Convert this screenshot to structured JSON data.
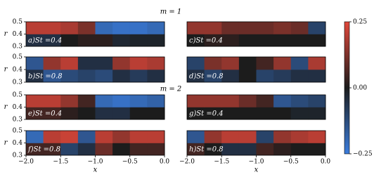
{
  "section_titles": [
    "m = 1",
    "m = 2"
  ],
  "colorbar": {
    "lim": [
      -0.25,
      0.25
    ],
    "colors": [
      "#3b7ddd",
      "#1c1c1c",
      "#e0473a"
    ],
    "ticks": [
      0.25,
      {
        "value": 0,
        "label": "0.00"
      },
      {
        "value": -0.25,
        "label": "−0.25"
      }
    ]
  },
  "chart_data": [
    {
      "type": "heatmap",
      "label": "a)St =0.4",
      "xlim": [
        -2,
        0
      ],
      "ylim": [
        0.3,
        0.5
      ],
      "xbins": [
        -2,
        -1.75,
        -1.5,
        -1.25,
        -1,
        -0.75,
        -0.5,
        -0.25,
        0
      ],
      "ybins": [
        0.3,
        0.4,
        0.5
      ],
      "z": [
        [
          -0.05,
          -0.05,
          0,
          0.02,
          0.02,
          -0.03,
          -0.02,
          -0.02
        ],
        [
          0.2,
          0.2,
          0.18,
          0.12,
          -0.2,
          -0.22,
          -0.22,
          -0.2
        ]
      ],
      "yticks": [
        0.5,
        0.4,
        0.3
      ],
      "ylabel": "r"
    },
    {
      "type": "heatmap",
      "label": "b)St =0.8",
      "xlim": [
        -2,
        0
      ],
      "ylim": [
        0.3,
        0.5
      ],
      "xbins": [
        -2,
        -1.75,
        -1.5,
        -1.25,
        -1,
        -0.75,
        -0.5,
        -0.25,
        0
      ],
      "ybins": [
        0.3,
        0.4,
        0.5
      ],
      "z": [
        [
          -0.05,
          -0.15,
          -0.12,
          -0.1,
          -0.12,
          -0.05,
          -0.08,
          -0.05
        ],
        [
          -0.15,
          0.15,
          0.2,
          -0.05,
          -0.05,
          0.15,
          0.2,
          0.18
        ]
      ],
      "yticks": [
        0.5,
        0.4,
        0.3
      ],
      "ylabel": "r"
    },
    {
      "type": "heatmap",
      "label": "c)St =0.4",
      "xlim": [
        -2,
        0
      ],
      "ylim": [
        0.3,
        0.5
      ],
      "xbins": [
        -2,
        -1.75,
        -1.5,
        -1.25,
        -1,
        -0.75,
        -0.5,
        -0.25,
        0
      ],
      "ybins": [
        0.3,
        0.4,
        0.5
      ],
      "z": [
        [
          0,
          0.02,
          0.02,
          0,
          0,
          0,
          0,
          0
        ],
        [
          0.15,
          0.15,
          0.1,
          0.1,
          0.1,
          0.12,
          0.1,
          -0.1
        ]
      ]
    },
    {
      "type": "heatmap",
      "label": "d)St =0.8",
      "xlim": [
        -2,
        0
      ],
      "ylim": [
        0.3,
        0.5
      ],
      "xbins": [
        -2,
        -1.75,
        -1.5,
        -1.25,
        -1,
        -0.75,
        -0.5,
        -0.25,
        0
      ],
      "ybins": [
        0.3,
        0.4,
        0.5
      ],
      "z": [
        [
          -0.05,
          -0.1,
          -0.05,
          0,
          -0.1,
          -0.08,
          -0.05,
          -0.05
        ],
        [
          -0.1,
          0.12,
          0.15,
          0,
          0.05,
          0.15,
          -0.12,
          0.18
        ]
      ]
    },
    {
      "type": "heatmap",
      "label": "e)St =0.4",
      "xlim": [
        -2,
        0
      ],
      "ylim": [
        0.3,
        0.5
      ],
      "xbins": [
        -2,
        -1.75,
        -1.5,
        -1.25,
        -1,
        -0.75,
        -0.5,
        -0.25,
        0
      ],
      "ybins": [
        0.3,
        0.4,
        0.5
      ],
      "z": [
        [
          0.05,
          0.05,
          0.02,
          0,
          -0.05,
          -0.05,
          0,
          0
        ],
        [
          0.2,
          0.2,
          0.15,
          0.05,
          -0.2,
          -0.22,
          -0.2,
          -0.18
        ]
      ],
      "yticks": [
        0.5,
        0.4,
        0.3
      ],
      "ylabel": "r"
    },
    {
      "type": "heatmap",
      "label": "f)St =0.8",
      "xlim": [
        -2,
        0
      ],
      "ylim": [
        0.3,
        0.5
      ],
      "xbins": [
        -2,
        -1.75,
        -1.5,
        -1.25,
        -1,
        -0.75,
        -0.5,
        -0.25,
        0
      ],
      "ybins": [
        0.3,
        0.4,
        0.5
      ],
      "z": [
        [
          0.05,
          0.05,
          -0.1,
          -0.05,
          0.1,
          0,
          0.05,
          0.05
        ],
        [
          -0.2,
          0.2,
          0.22,
          -0.15,
          0.2,
          0.15,
          0.2,
          0.2
        ]
      ],
      "yticks": [
        0.5,
        0.4,
        0.3
      ],
      "ylabel": "r",
      "xticks": [
        {
          "value": -2,
          "label": "−2.0"
        },
        {
          "value": -1.5,
          "label": "−1.5"
        },
        {
          "value": -1,
          "label": "−1.0"
        },
        {
          "value": -0.5,
          "label": "−0.5"
        },
        {
          "value": 0,
          "label": "0.0"
        }
      ],
      "xlabel": "x"
    },
    {
      "type": "heatmap",
      "label": "g)St =0.4",
      "xlim": [
        -2,
        0
      ],
      "ylim": [
        0.3,
        0.5
      ],
      "xbins": [
        -2,
        -1.75,
        -1.5,
        -1.25,
        -1,
        -0.75,
        -0.5,
        -0.25,
        0
      ],
      "ybins": [
        0.3,
        0.4,
        0.5
      ],
      "z": [
        [
          0,
          0,
          0,
          0,
          0,
          0,
          -0.02,
          -0.02
        ],
        [
          0.15,
          0.15,
          0.15,
          0.1,
          0.05,
          -0.15,
          -0.12,
          -0.1
        ]
      ]
    },
    {
      "type": "heatmap",
      "label": "h)St =0.8",
      "xlim": [
        -2,
        0
      ],
      "ylim": [
        0.3,
        0.5
      ],
      "xbins": [
        -2,
        -1.75,
        -1.5,
        -1.25,
        -1,
        -0.75,
        -0.5,
        -0.25,
        0
      ],
      "ybins": [
        0.3,
        0.4,
        0.5
      ],
      "z": [
        [
          0.05,
          0,
          -0.05,
          -0.05,
          0.05,
          0.02,
          0,
          0
        ],
        [
          -0.15,
          0.15,
          0.2,
          0.2,
          -0.1,
          0.15,
          0.18,
          0.2
        ]
      ],
      "xticks": [
        {
          "value": -2,
          "label": "−2.0"
        },
        {
          "value": -1.5,
          "label": "−1.5"
        },
        {
          "value": -1,
          "label": "−1.0"
        },
        {
          "value": -0.5,
          "label": "−0.5"
        },
        {
          "value": 0,
          "label": "0.0"
        }
      ],
      "xlabel": "x"
    }
  ]
}
